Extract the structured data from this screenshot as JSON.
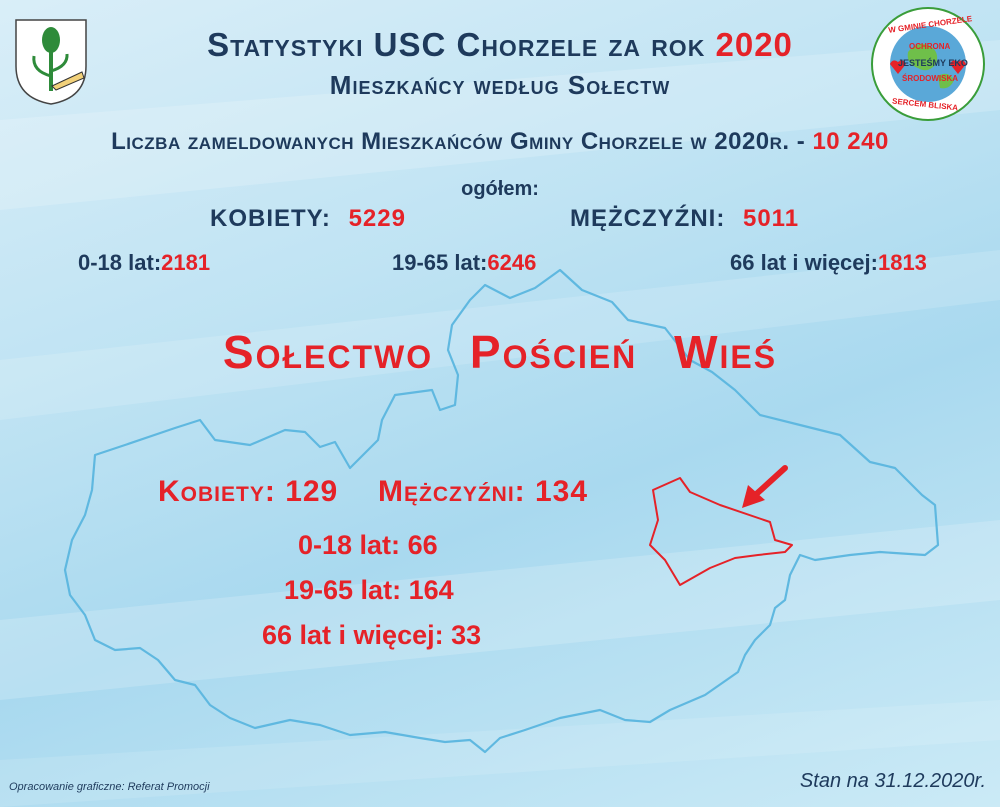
{
  "header": {
    "title_prefix": "Statystyki USC Chorzele za rok",
    "title_year": "2020",
    "subtitle": "Mieszkańcy według Sołectw"
  },
  "summary": {
    "total_label": "Liczba zameldowanych Mieszkańców Gminy Chorzele w 2020r. -",
    "total_value": "10 240",
    "overall_label": "ogółem:",
    "women_label": "KOBIETY:",
    "women_value": "5229",
    "men_label": "MĘŻCZYŹNI:",
    "men_value": "5011",
    "age_groups": [
      {
        "label": "0-18 lat:",
        "value": "2181"
      },
      {
        "label": "19-65 lat:",
        "value": "6246"
      },
      {
        "label": "66 lat i więcej:",
        "value": "1813"
      }
    ]
  },
  "village": {
    "title": "Sołectwo Poścień Wieś",
    "women_label": "Kobiety:",
    "women_value": "129",
    "men_label": "Mężczyźni:",
    "men_value": "134",
    "age_groups": [
      {
        "label": "0-18 lat:",
        "value": "66"
      },
      {
        "label": "19-65 lat:",
        "value": "164"
      },
      {
        "label": "66 lat i więcej:",
        "value": "33"
      }
    ]
  },
  "logo_badge": {
    "top_text": "W GMINIE CHORZELE",
    "inner_text_1": "OCHRONA",
    "inner_text_2": "JESTEŚMY EKO",
    "inner_text_3": "ŚRODOWISKA",
    "bottom_text": "SERCEM BLISKA"
  },
  "footer": {
    "credit": "Opracowanie graficzne: Referat Promocji",
    "date": "Stan na 31.12.2020r."
  },
  "colors": {
    "navy": "#1e3a5c",
    "red": "#e52228",
    "map_outline": "#5fb8e0",
    "village_outline": "#e52228"
  }
}
